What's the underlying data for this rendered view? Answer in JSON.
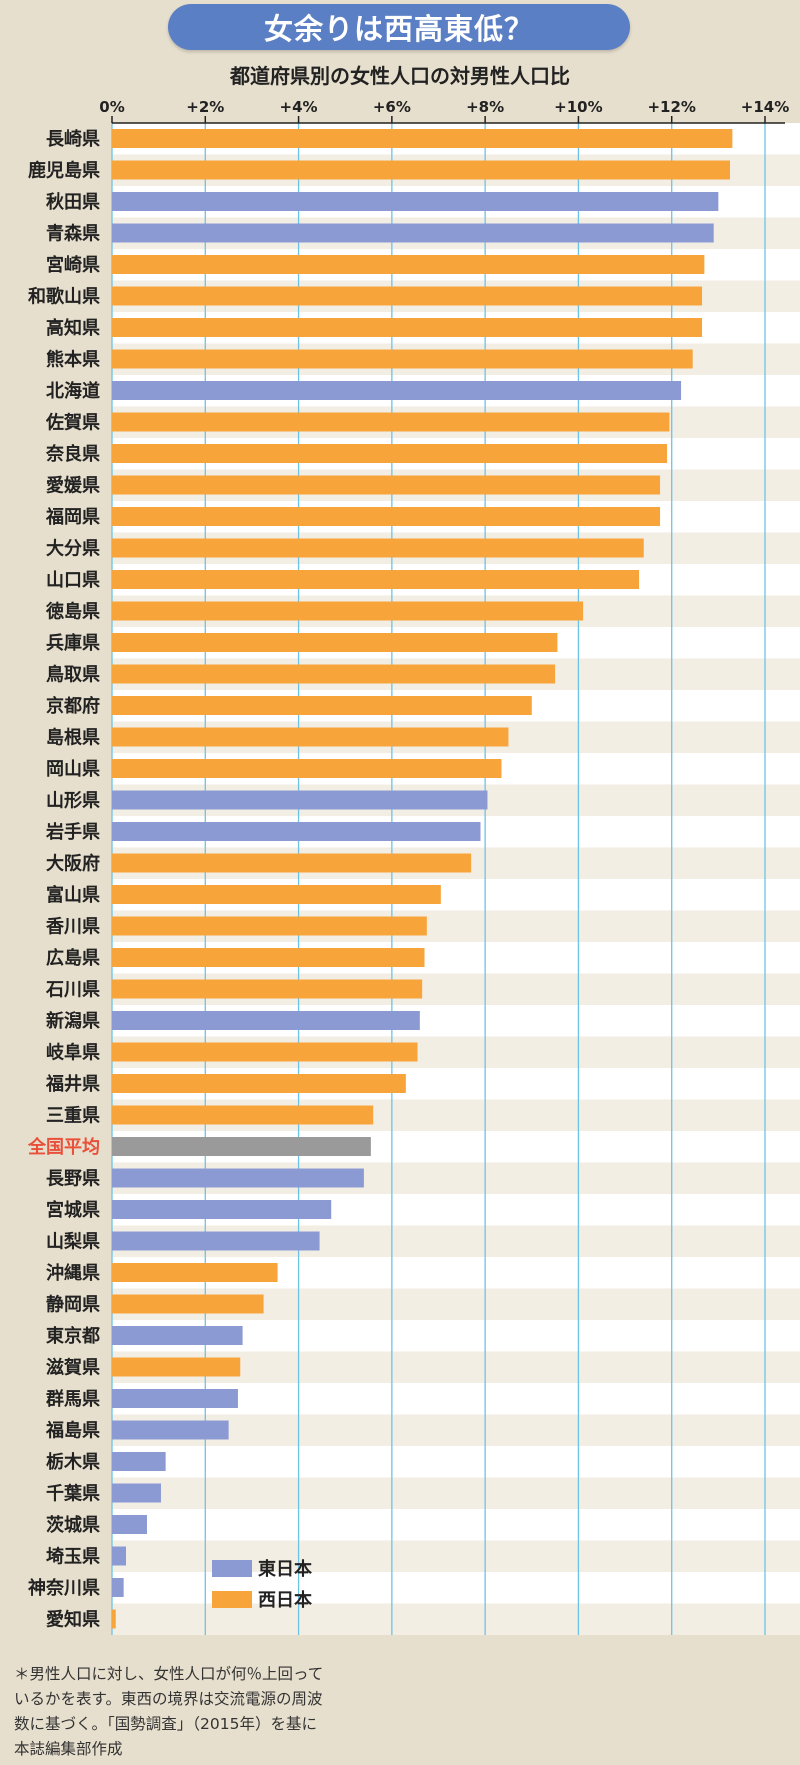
{
  "title": "女余りは西高東低？",
  "footnote": "＊男性人口に対し、女性人口が何％上回っているかを表す。東西の境界は交流電源の周波数に基づく。「国勢調査」（2015年）を基に本誌編集部作成",
  "colors": {
    "east": "#8c9ad4",
    "west": "#f7a43a",
    "average": "#9a9a9a",
    "average_label": "#e8503a",
    "title_bg": "#5b7fc4"
  },
  "chart_data": {
    "type": "bar",
    "orientation": "horizontal",
    "title": "都道府県別の女性人口の対男性人口比",
    "xlim": [
      0,
      14
    ],
    "x_ticks": [
      "0%",
      "+2%",
      "+4%",
      "+6%",
      "+8%",
      "+10%",
      "+12%",
      "+14%"
    ],
    "grid": true,
    "legend": {
      "position": "bottom-left",
      "entries": [
        {
          "name": "東日本",
          "group": "east"
        },
        {
          "name": "西日本",
          "group": "west"
        }
      ]
    },
    "bars": [
      {
        "label": "長崎県",
        "value": 13.3,
        "group": "west"
      },
      {
        "label": "鹿児島県",
        "value": 13.25,
        "group": "west"
      },
      {
        "label": "秋田県",
        "value": 13.0,
        "group": "east"
      },
      {
        "label": "青森県",
        "value": 12.9,
        "group": "east"
      },
      {
        "label": "宮崎県",
        "value": 12.7,
        "group": "west"
      },
      {
        "label": "和歌山県",
        "value": 12.65,
        "group": "west"
      },
      {
        "label": "高知県",
        "value": 12.65,
        "group": "west"
      },
      {
        "label": "熊本県",
        "value": 12.45,
        "group": "west"
      },
      {
        "label": "北海道",
        "value": 12.2,
        "group": "east"
      },
      {
        "label": "佐賀県",
        "value": 11.95,
        "group": "west"
      },
      {
        "label": "奈良県",
        "value": 11.9,
        "group": "west"
      },
      {
        "label": "愛媛県",
        "value": 11.75,
        "group": "west"
      },
      {
        "label": "福岡県",
        "value": 11.75,
        "group": "west"
      },
      {
        "label": "大分県",
        "value": 11.4,
        "group": "west"
      },
      {
        "label": "山口県",
        "value": 11.3,
        "group": "west"
      },
      {
        "label": "徳島県",
        "value": 10.1,
        "group": "west"
      },
      {
        "label": "兵庫県",
        "value": 9.55,
        "group": "west"
      },
      {
        "label": "鳥取県",
        "value": 9.5,
        "group": "west"
      },
      {
        "label": "京都府",
        "value": 9.0,
        "group": "west"
      },
      {
        "label": "島根県",
        "value": 8.5,
        "group": "west"
      },
      {
        "label": "岡山県",
        "value": 8.35,
        "group": "west"
      },
      {
        "label": "山形県",
        "value": 8.05,
        "group": "east"
      },
      {
        "label": "岩手県",
        "value": 7.9,
        "group": "east"
      },
      {
        "label": "大阪府",
        "value": 7.7,
        "group": "west"
      },
      {
        "label": "富山県",
        "value": 7.05,
        "group": "west"
      },
      {
        "label": "香川県",
        "value": 6.75,
        "group": "west"
      },
      {
        "label": "広島県",
        "value": 6.7,
        "group": "west"
      },
      {
        "label": "石川県",
        "value": 6.65,
        "group": "west"
      },
      {
        "label": "新潟県",
        "value": 6.6,
        "group": "east"
      },
      {
        "label": "岐阜県",
        "value": 6.55,
        "group": "west"
      },
      {
        "label": "福井県",
        "value": 6.3,
        "group": "west"
      },
      {
        "label": "三重県",
        "value": 5.6,
        "group": "west"
      },
      {
        "label": "全国平均",
        "value": 5.55,
        "group": "average"
      },
      {
        "label": "長野県",
        "value": 5.4,
        "group": "east"
      },
      {
        "label": "宮城県",
        "value": 4.7,
        "group": "east"
      },
      {
        "label": "山梨県",
        "value": 4.45,
        "group": "east"
      },
      {
        "label": "沖縄県",
        "value": 3.55,
        "group": "west"
      },
      {
        "label": "静岡県",
        "value": 3.25,
        "group": "west"
      },
      {
        "label": "東京都",
        "value": 2.8,
        "group": "east"
      },
      {
        "label": "滋賀県",
        "value": 2.75,
        "group": "west"
      },
      {
        "label": "群馬県",
        "value": 2.7,
        "group": "east"
      },
      {
        "label": "福島県",
        "value": 2.5,
        "group": "east"
      },
      {
        "label": "栃木県",
        "value": 1.15,
        "group": "east"
      },
      {
        "label": "千葉県",
        "value": 1.05,
        "group": "east"
      },
      {
        "label": "茨城県",
        "value": 0.75,
        "group": "east"
      },
      {
        "label": "埼玉県",
        "value": 0.3,
        "group": "east"
      },
      {
        "label": "神奈川県",
        "value": 0.25,
        "group": "east"
      },
      {
        "label": "愛知県",
        "value": 0.08,
        "group": "west"
      }
    ]
  }
}
